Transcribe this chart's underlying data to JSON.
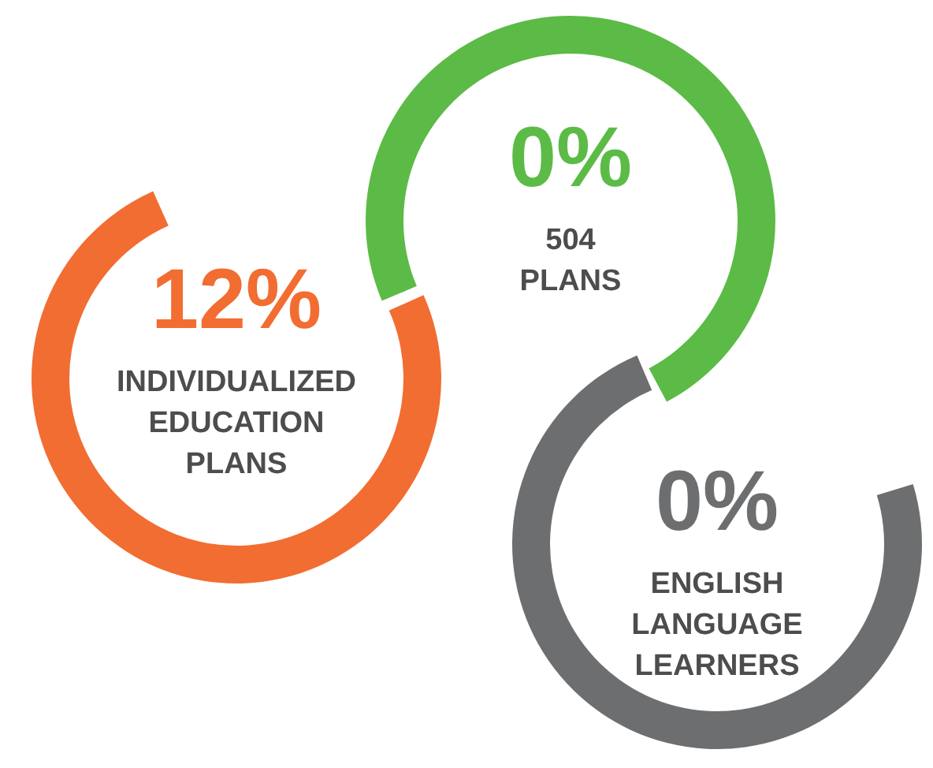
{
  "chart_data": {
    "type": "other",
    "categories": [
      "INDIVIDUALIZED EDUCATION PLANS",
      "504 PLANS",
      "ENGLISH LANGUAGE LEARNERS"
    ],
    "values": [
      12,
      0,
      0
    ],
    "value_labels": [
      "12%",
      "0%",
      "0%"
    ],
    "colors": [
      "#f26d31",
      "#5bbb46",
      "#6d6e70"
    ]
  }
}
